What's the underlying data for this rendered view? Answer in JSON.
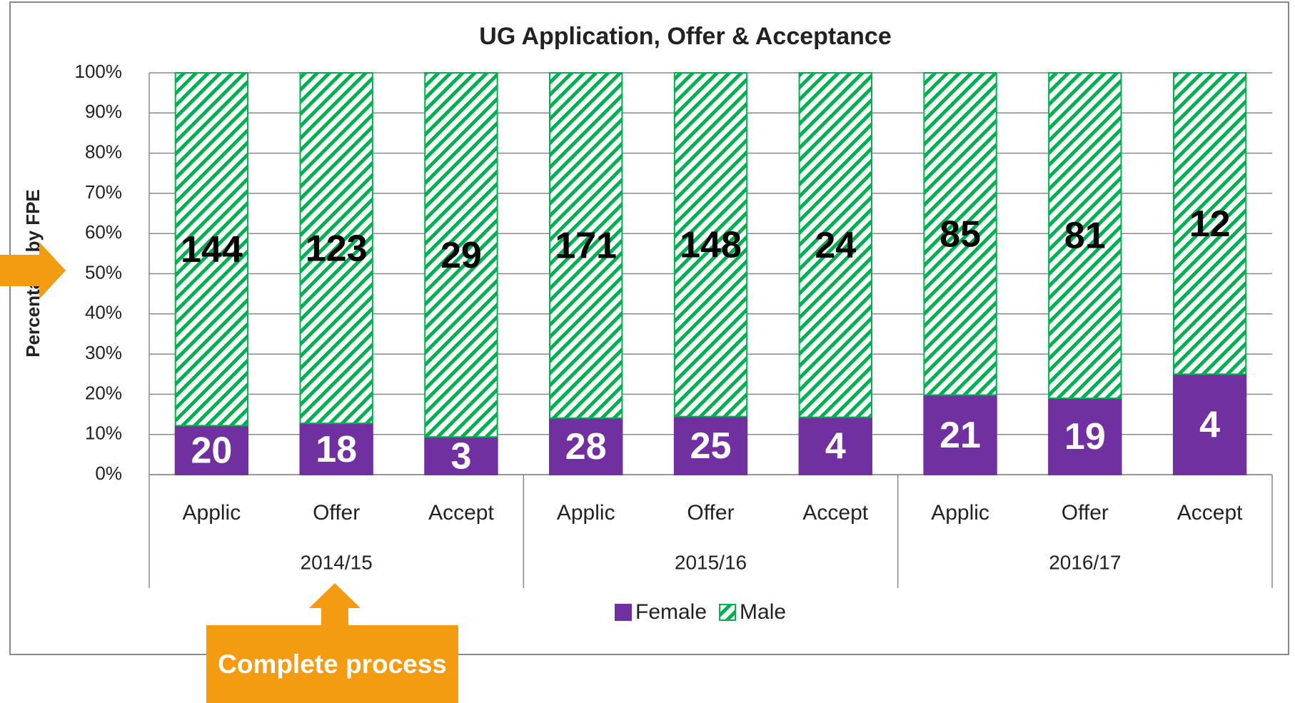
{
  "chart_data": {
    "type": "bar",
    "stacking": "percent",
    "title": "UG Application, Offer & Acceptance",
    "ylabel": "Percentage by FPE",
    "categories": [
      "Applic",
      "Offer",
      "Accept",
      "Applic",
      "Offer",
      "Accept",
      "Applic",
      "Offer",
      "Accept"
    ],
    "groups": [
      {
        "label": "2014/15",
        "span": 3
      },
      {
        "label": "2015/16",
        "span": 3
      },
      {
        "label": "2016/17",
        "span": 3
      }
    ],
    "series": [
      {
        "name": "Female",
        "color": "#7030a0",
        "values": [
          20,
          18,
          3,
          28,
          25,
          4,
          21,
          19,
          4
        ]
      },
      {
        "name": "Male",
        "color": "#00b050",
        "pattern": "hatch",
        "values": [
          144,
          123,
          29,
          171,
          148,
          24,
          85,
          81,
          12
        ]
      }
    ],
    "ylim": [
      0,
      100
    ],
    "yticks": [
      {
        "value": 0,
        "label": "0%"
      },
      {
        "value": 10,
        "label": "10%"
      },
      {
        "value": 20,
        "label": "20%"
      },
      {
        "value": 30,
        "label": "30%"
      },
      {
        "value": 40,
        "label": "40%"
      },
      {
        "value": 50,
        "label": "50%"
      },
      {
        "value": 60,
        "label": "60%"
      },
      {
        "value": 70,
        "label": "70%"
      },
      {
        "value": 80,
        "label": "80%"
      },
      {
        "value": 90,
        "label": "90%"
      },
      {
        "value": 100,
        "label": "100%"
      }
    ],
    "grid": true,
    "legend": "bottom"
  },
  "annotations": [
    {
      "text": "Complete process"
    }
  ]
}
